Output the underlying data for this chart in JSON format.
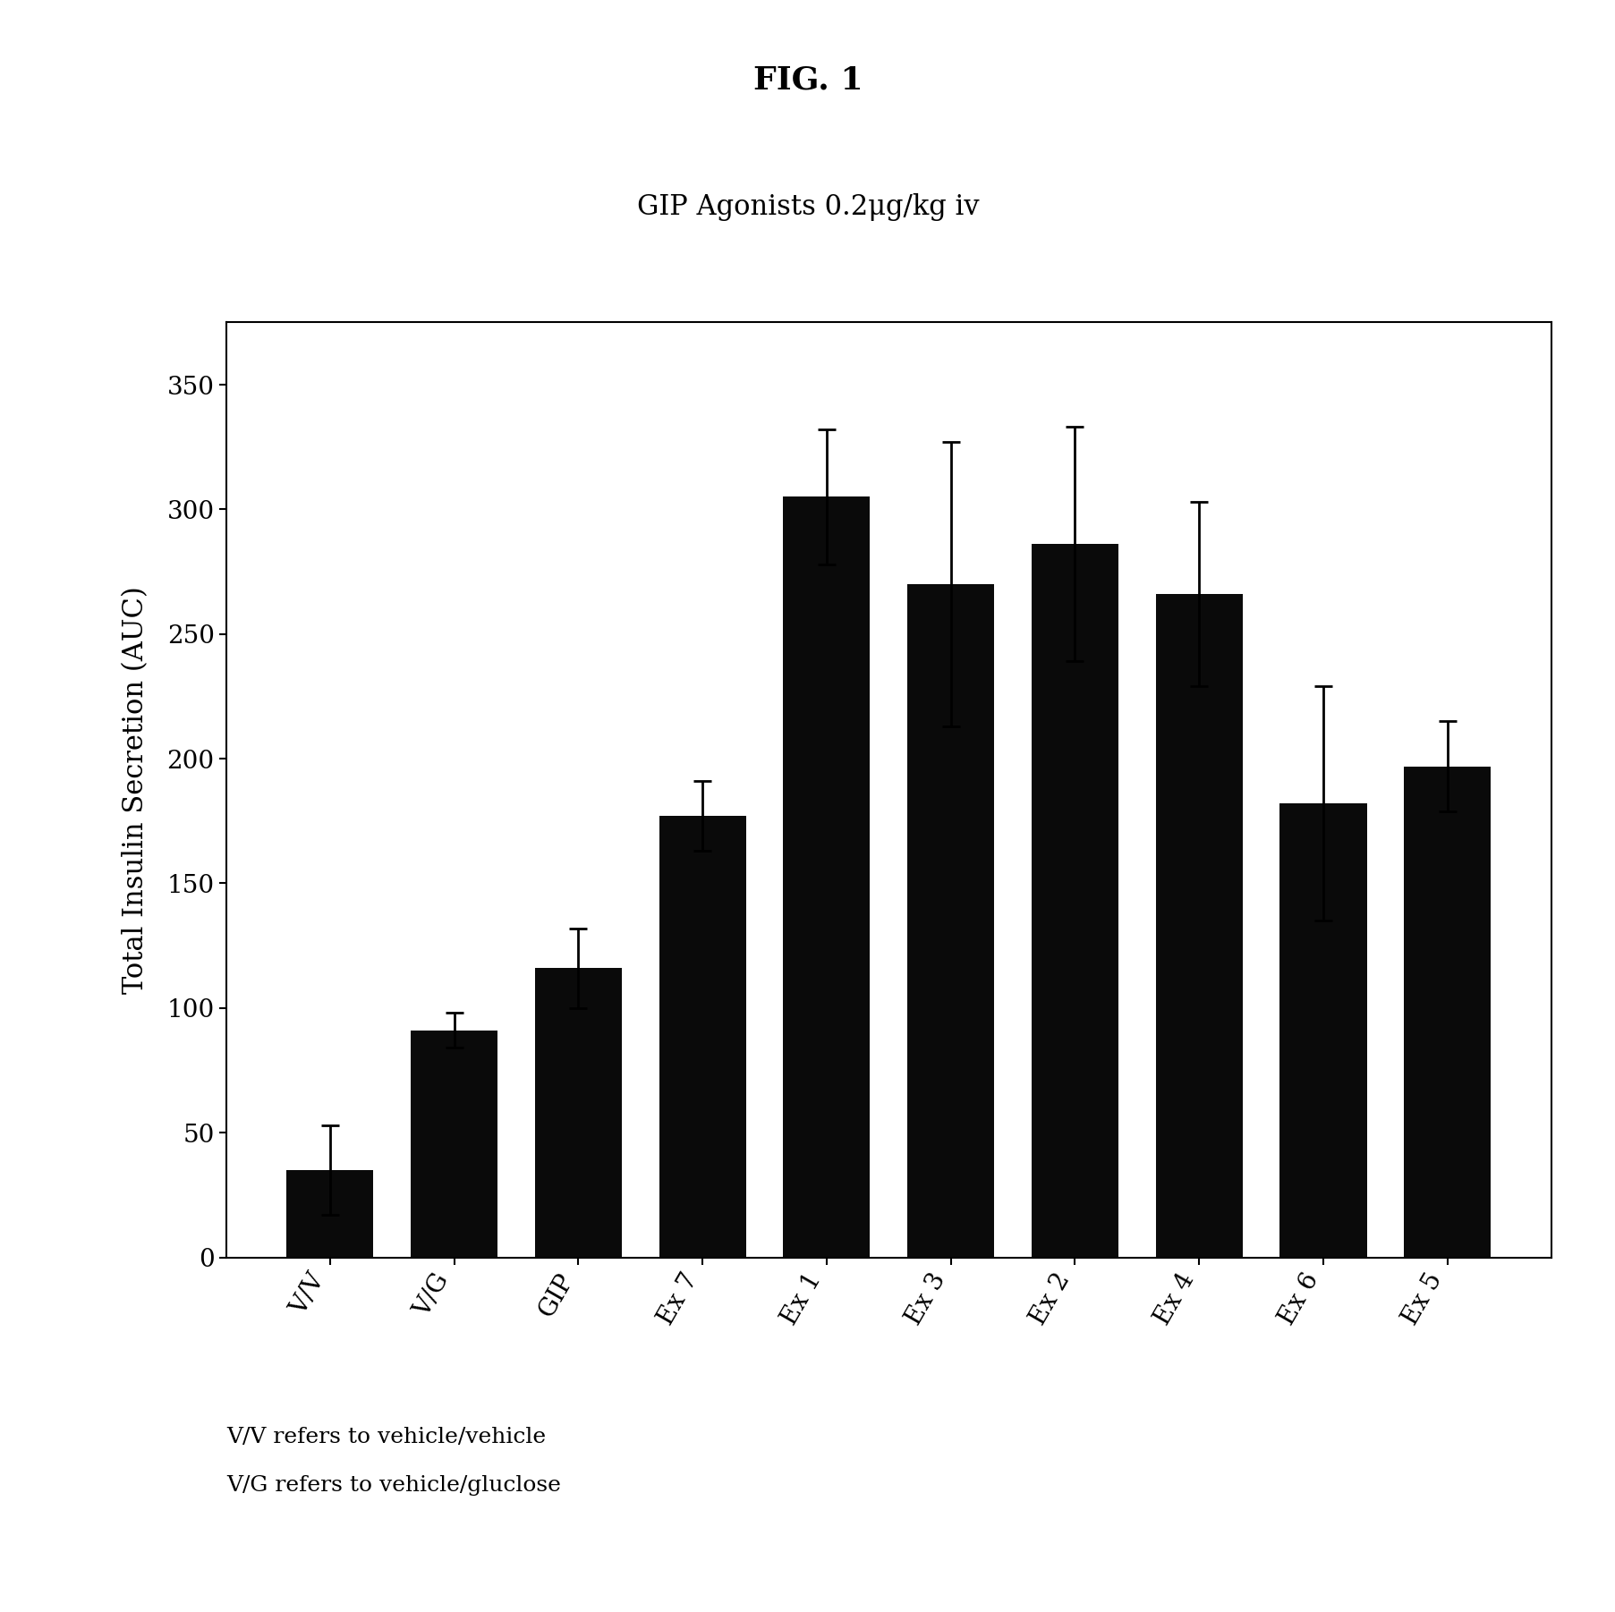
{
  "title": "FIG. 1",
  "subtitle": "GIP Agonists 0.2μg/kg iv",
  "categories": [
    "V/V",
    "V/G",
    "GIP",
    "Ex 7",
    "Ex 1",
    "Ex 3",
    "Ex 2",
    "Ex 4",
    "Ex 6",
    "Ex 5"
  ],
  "values": [
    35,
    91,
    116,
    177,
    305,
    270,
    286,
    266,
    182,
    197
  ],
  "errors": [
    18,
    7,
    16,
    14,
    27,
    57,
    47,
    37,
    47,
    18
  ],
  "bar_color": "#0a0a0a",
  "ylabel": "Total Insulin Secretion (AUC)",
  "ylim": [
    0,
    375
  ],
  "yticks": [
    0,
    50,
    100,
    150,
    200,
    250,
    300,
    350
  ],
  "footnote1": "V/V refers to vehicle/vehicle",
  "footnote2": "V/G refers to vehicle/gluclose",
  "background_color": "#ffffff",
  "title_fontsize": 26,
  "subtitle_fontsize": 22,
  "ylabel_fontsize": 22,
  "tick_fontsize": 20,
  "footnote_fontsize": 18
}
